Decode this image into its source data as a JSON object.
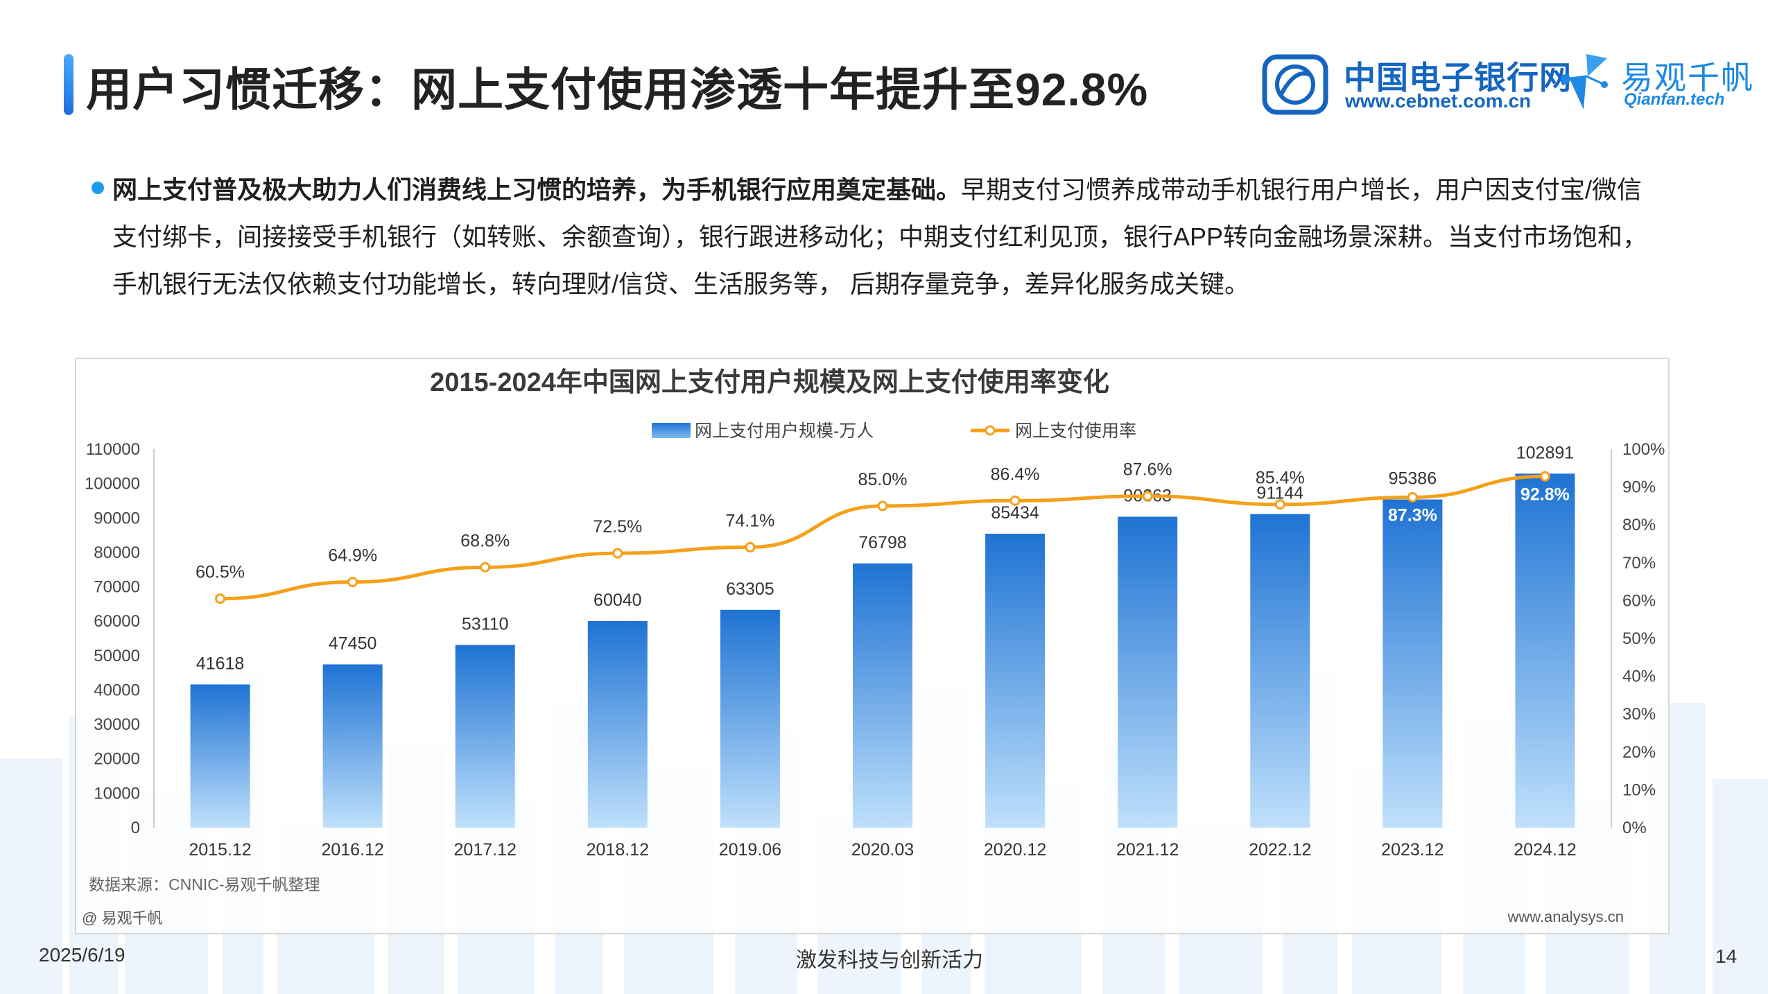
{
  "header": {
    "title": "用户习惯迁移：网上支付使用渗透十年提升至92.8%",
    "logo_cebnet_cn": "中国电子银行网",
    "logo_cebnet_url": "www.cebnet.com.cn",
    "logo_qianfan_cn": "易观千帆",
    "logo_qianfan_url": "Qianfan.tech"
  },
  "bullet": {
    "lead": "网上支付普及极大助力人们消费线上习惯的培养，为手机银行应用奠定基础。",
    "body": "早期支付习惯养成带动手机银行用户增长，用户因支付宝/微信支付绑卡，间接接受手机银行（如转账、余额查询），银行跟进移动化；中期支付红利见顶，银行APP转向金融场景深耕。当支付市场饱和，手机银行无法仅依赖支付功能增长，转向理财/信贷、生活服务等，  后期存量竞争，差异化服务成关键。"
  },
  "chart_data": {
    "type": "bar",
    "title": "2015-2024年中国网上支付用户规模及网上支付使用率变化",
    "categories": [
      "2015.12",
      "2016.12",
      "2017.12",
      "2018.12",
      "2019.06",
      "2020.03",
      "2020.12",
      "2021.12",
      "2022.12",
      "2023.12",
      "2024.12"
    ],
    "series": [
      {
        "name": "网上支付用户规模-万人",
        "type": "bar",
        "axis": "left",
        "values": [
          41618,
          47450,
          53110,
          60040,
          63305,
          76798,
          85434,
          90363,
          91144,
          95386,
          102891
        ]
      },
      {
        "name": "网上支付使用率",
        "type": "line",
        "axis": "right",
        "values": [
          60.5,
          64.9,
          68.8,
          72.5,
          74.1,
          85.0,
          86.4,
          87.6,
          85.4,
          87.3,
          92.8
        ],
        "labels": [
          "60.5%",
          "64.9%",
          "68.8%",
          "72.5%",
          "74.1%",
          "85.0%",
          "86.4%",
          "87.6%",
          "85.4%",
          "87.3%",
          "92.8%"
        ]
      }
    ],
    "ylim_left": [
      0,
      110000
    ],
    "yticks_left": [
      "0",
      "10000",
      "20000",
      "30000",
      "40000",
      "50000",
      "60000",
      "70000",
      "80000",
      "90000",
      "100000",
      "110000"
    ],
    "ylim_right": [
      0,
      100
    ],
    "yticks_right": [
      "0%",
      "10%",
      "20%",
      "30%",
      "40%",
      "50%",
      "60%",
      "70%",
      "80%",
      "90%",
      "100%"
    ],
    "legend_position": "top-center",
    "grid": false,
    "colors": {
      "bar_top": "#1f73d4",
      "bar_bottom": "#bfe0fb",
      "line": "#f5a01a"
    },
    "source": "数据来源：CNNIC-易观千帆整理",
    "watermark_left": "@ 易观千帆",
    "watermark_right": "www.analysys.cn"
  },
  "footer": {
    "date": "2025/6/19",
    "slogan": "激发科技与创新活力",
    "page": "14"
  }
}
